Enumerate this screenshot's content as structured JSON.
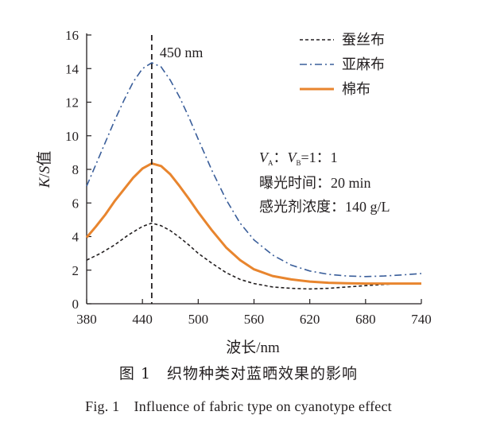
{
  "chart_data": {
    "type": "line",
    "xlabel": "波长/nm",
    "ylabel_parts": {
      "k": "K",
      "sep": "/",
      "s": "S",
      "rest": "值"
    },
    "xlim": [
      380,
      740
    ],
    "ylim": [
      0,
      16
    ],
    "x_ticks": [
      380,
      440,
      500,
      560,
      620,
      680,
      740
    ],
    "y_ticks": [
      0,
      2,
      4,
      6,
      8,
      10,
      12,
      14,
      16
    ],
    "vline": {
      "x": 450,
      "label": "450 nm"
    },
    "legend_position": "top-right",
    "annotations": {
      "ratio": {
        "va": "V",
        "sub_a": "A",
        "colon1": "：",
        "vb": "V",
        "sub_b": "B",
        "value": "=1：1"
      },
      "exposure": "曝光时间：20 min",
      "concentration": "感光剂浓度：140 g/L"
    },
    "series": [
      {
        "name": "蚕丝布",
        "color": "#231f20",
        "style": "dashed",
        "points": [
          [
            380,
            2.6
          ],
          [
            395,
            3.0
          ],
          [
            410,
            3.5
          ],
          [
            425,
            4.1
          ],
          [
            440,
            4.6
          ],
          [
            450,
            4.8
          ],
          [
            460,
            4.65
          ],
          [
            470,
            4.35
          ],
          [
            480,
            3.95
          ],
          [
            490,
            3.5
          ],
          [
            500,
            3.0
          ],
          [
            515,
            2.4
          ],
          [
            530,
            1.85
          ],
          [
            545,
            1.45
          ],
          [
            560,
            1.2
          ],
          [
            580,
            1.0
          ],
          [
            600,
            0.92
          ],
          [
            620,
            0.88
          ],
          [
            640,
            0.92
          ],
          [
            660,
            1.0
          ],
          [
            680,
            1.08
          ],
          [
            700,
            1.15
          ],
          [
            720,
            1.2
          ],
          [
            740,
            1.2
          ]
        ]
      },
      {
        "name": "亚麻布",
        "color": "#3a5e9a",
        "style": "dashdot",
        "points": [
          [
            380,
            7.0
          ],
          [
            390,
            8.3
          ],
          [
            400,
            9.6
          ],
          [
            410,
            10.9
          ],
          [
            420,
            12.1
          ],
          [
            430,
            13.2
          ],
          [
            440,
            14.0
          ],
          [
            450,
            14.35
          ],
          [
            460,
            14.1
          ],
          [
            470,
            13.3
          ],
          [
            480,
            12.3
          ],
          [
            490,
            11.1
          ],
          [
            500,
            9.8
          ],
          [
            515,
            7.9
          ],
          [
            530,
            6.2
          ],
          [
            545,
            4.8
          ],
          [
            560,
            3.8
          ],
          [
            580,
            2.9
          ],
          [
            600,
            2.3
          ],
          [
            620,
            1.95
          ],
          [
            640,
            1.75
          ],
          [
            660,
            1.65
          ],
          [
            680,
            1.62
          ],
          [
            700,
            1.65
          ],
          [
            720,
            1.72
          ],
          [
            740,
            1.8
          ]
        ]
      },
      {
        "name": "棉布",
        "color": "#e8852e",
        "style": "solid",
        "points": [
          [
            380,
            3.95
          ],
          [
            390,
            4.6
          ],
          [
            400,
            5.3
          ],
          [
            410,
            6.1
          ],
          [
            420,
            6.8
          ],
          [
            430,
            7.5
          ],
          [
            440,
            8.05
          ],
          [
            450,
            8.35
          ],
          [
            460,
            8.2
          ],
          [
            470,
            7.7
          ],
          [
            480,
            7.0
          ],
          [
            490,
            6.25
          ],
          [
            500,
            5.45
          ],
          [
            515,
            4.35
          ],
          [
            530,
            3.35
          ],
          [
            545,
            2.6
          ],
          [
            560,
            2.05
          ],
          [
            580,
            1.65
          ],
          [
            600,
            1.45
          ],
          [
            620,
            1.32
          ],
          [
            640,
            1.25
          ],
          [
            660,
            1.22
          ],
          [
            680,
            1.2
          ],
          [
            700,
            1.2
          ],
          [
            720,
            1.2
          ],
          [
            740,
            1.2
          ]
        ]
      }
    ]
  },
  "caption": {
    "cn": "图 1　织物种类对蓝晒效果的影响",
    "en": "Fig. 1　Influence of fabric type on cyanotype effect"
  }
}
